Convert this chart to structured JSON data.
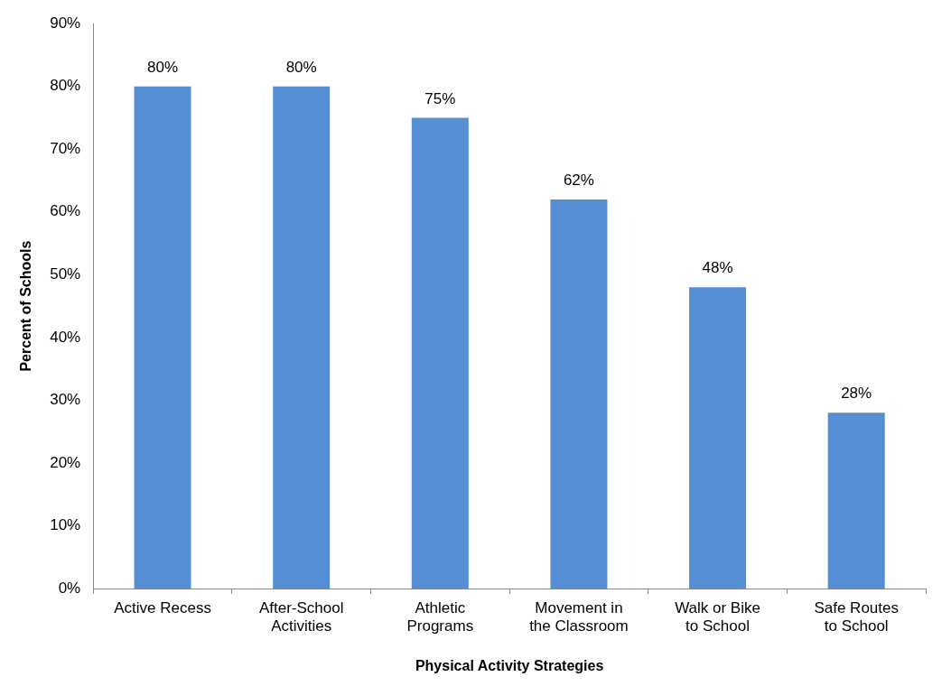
{
  "chart_data": {
    "type": "bar",
    "xlabel": "Physical Activity Strategies",
    "ylabel": "Percent of Schools",
    "categories": [
      "Active Recess",
      "After-School Activities",
      "Athletic Programs",
      "Movement in the Classroom",
      "Walk or Bike to School",
      "Safe Routes to School"
    ],
    "values": [
      80,
      80,
      75,
      62,
      48,
      28
    ],
    "value_labels": [
      "80%",
      "80%",
      "75%",
      "62%",
      "48%",
      "28%"
    ],
    "color": "#558ed5",
    "ylim": [
      0,
      90
    ],
    "yticks": [
      {
        "value": 0,
        "label": "0%"
      },
      {
        "value": 10,
        "label": "10%"
      },
      {
        "value": 20,
        "label": "20%"
      },
      {
        "value": 30,
        "label": "30%"
      },
      {
        "value": 40,
        "label": "40%"
      },
      {
        "value": 50,
        "label": "50%"
      },
      {
        "value": 60,
        "label": "60%"
      },
      {
        "value": 70,
        "label": "70%"
      },
      {
        "value": 80,
        "label": "80%"
      },
      {
        "value": 90,
        "label": "90%"
      }
    ],
    "grid": false,
    "legend": false
  }
}
